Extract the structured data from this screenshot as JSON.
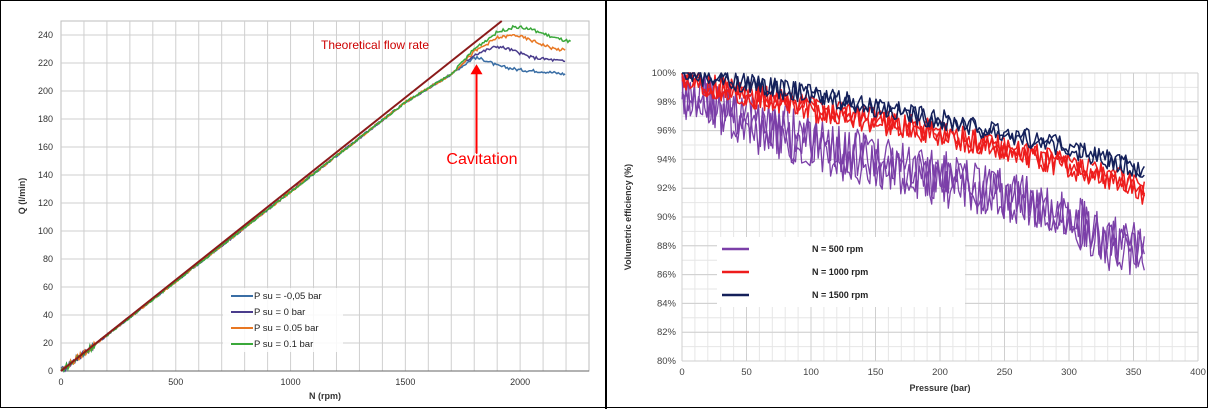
{
  "chart_data": [
    {
      "type": "line",
      "xlabel": "N (rpm)",
      "ylabel": "Q (l/min)",
      "xlim": [
        0,
        2300
      ],
      "ylim": [
        0,
        250
      ],
      "x_ticks": [
        0,
        500,
        1000,
        1500,
        2000
      ],
      "y_ticks": [
        0,
        20,
        40,
        60,
        80,
        100,
        120,
        140,
        160,
        180,
        200,
        220,
        240
      ],
      "grid": true,
      "legend": "bottom-center",
      "annotations": [
        {
          "text": "Theoretical flow rate",
          "color": "#cc0000"
        },
        {
          "text": "Cavitation",
          "color": "#ff0000",
          "arrow_to": [
            1810,
            222
          ]
        }
      ],
      "reference_line": {
        "color": "#8b1a1a",
        "points": [
          [
            0,
            0
          ],
          [
            1920,
            250
          ]
        ]
      },
      "series": [
        {
          "name": "P su = -0,05 bar",
          "color": "#3a6ea5",
          "points": [
            [
              0,
              0
            ],
            [
              1500,
              192
            ],
            [
              1700,
              212
            ],
            [
              1800,
              224
            ],
            [
              1850,
              222
            ],
            [
              1900,
              218
            ],
            [
              2000,
              215
            ],
            [
              2100,
              214
            ],
            [
              2200,
              212
            ]
          ]
        },
        {
          "name": "P su = 0 bar",
          "color": "#4a3c8c",
          "points": [
            [
              0,
              0
            ],
            [
              1500,
              192
            ],
            [
              1700,
              212
            ],
            [
              1800,
              226
            ],
            [
              1900,
              232
            ],
            [
              1950,
              230
            ],
            [
              2050,
              224
            ],
            [
              2150,
              222
            ],
            [
              2200,
              221
            ]
          ]
        },
        {
          "name": "P su = 0.05 bar",
          "color": "#e87722",
          "points": [
            [
              0,
              0
            ],
            [
              1500,
              192
            ],
            [
              1700,
              212
            ],
            [
              1800,
              228
            ],
            [
              1900,
              238
            ],
            [
              1980,
              240
            ],
            [
              2050,
              236
            ],
            [
              2150,
              230
            ],
            [
              2200,
              229
            ]
          ]
        },
        {
          "name": "P su = 0.1 bar",
          "color": "#3aa83a",
          "points": [
            [
              0,
              0
            ],
            [
              1500,
              192
            ],
            [
              1700,
              212
            ],
            [
              1800,
              230
            ],
            [
              1900,
              242
            ],
            [
              1980,
              246
            ],
            [
              2050,
              244
            ],
            [
              2150,
              238
            ],
            [
              2220,
              235
            ]
          ]
        }
      ]
    },
    {
      "type": "line",
      "xlabel": "Pressure (bar)",
      "ylabel": "Volumetric efficiency (%)",
      "xlim": [
        0,
        400
      ],
      "ylim": [
        80,
        100
      ],
      "x_ticks": [
        0,
        50,
        100,
        150,
        200,
        250,
        300,
        350,
        400
      ],
      "y_ticks": [
        "80%",
        "82%",
        "84%",
        "86%",
        "88%",
        "90%",
        "92%",
        "94%",
        "96%",
        "98%",
        "100%"
      ],
      "grid": true,
      "legend": "center-left",
      "series": [
        {
          "name": "N = 500 rpm",
          "color": "#7b3fa8",
          "points": [
            [
              0,
              99.2
            ],
            [
              50,
              97.0
            ],
            [
              100,
              95.5
            ],
            [
              150,
              94.2
            ],
            [
              200,
              93.0
            ],
            [
              250,
              91.8
            ],
            [
              300,
              90.5
            ],
            [
              330,
              88.5
            ],
            [
              355,
              88.0
            ]
          ]
        },
        {
          "name": "N = 1000 rpm",
          "color": "#ee1c1c",
          "points": [
            [
              0,
              99.7
            ],
            [
              50,
              98.5
            ],
            [
              100,
              97.5
            ],
            [
              150,
              96.7
            ],
            [
              200,
              95.8
            ],
            [
              250,
              94.8
            ],
            [
              300,
              93.5
            ],
            [
              350,
              92.3
            ],
            [
              360,
              91.5
            ]
          ]
        },
        {
          "name": "N = 1500 rpm",
          "color": "#14205a",
          "points": [
            [
              0,
              100.0
            ],
            [
              50,
              99.3
            ],
            [
              100,
              98.5
            ],
            [
              150,
              97.6
            ],
            [
              200,
              96.8
            ],
            [
              250,
              95.8
            ],
            [
              300,
              94.8
            ],
            [
              350,
              93.5
            ],
            [
              360,
              93.2
            ]
          ]
        }
      ]
    }
  ]
}
